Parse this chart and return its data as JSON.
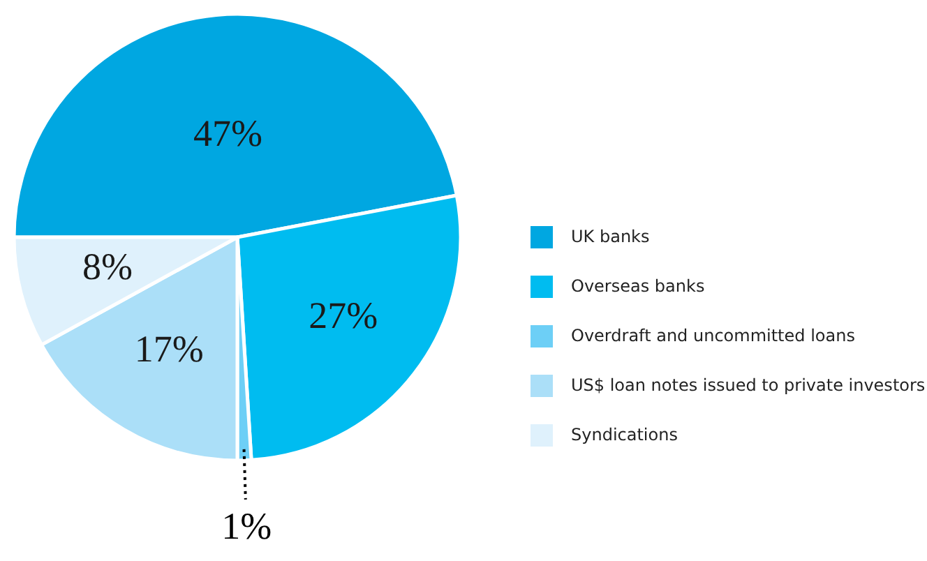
{
  "chart_data": {
    "type": "pie",
    "categories": [
      "UK banks",
      "Overseas banks",
      "Overdraft and uncommitted loans",
      "US$ loan notes issued to private investors",
      "Syndications"
    ],
    "values": [
      47,
      27,
      1,
      17,
      8
    ],
    "colors": [
      "#00a7e1",
      "#00bcf0",
      "#6dcff6",
      "#abdff8",
      "#dff1fc"
    ],
    "value_labels": [
      "47%",
      "27%",
      "1%",
      "17%",
      "8%"
    ],
    "legend": "right"
  }
}
